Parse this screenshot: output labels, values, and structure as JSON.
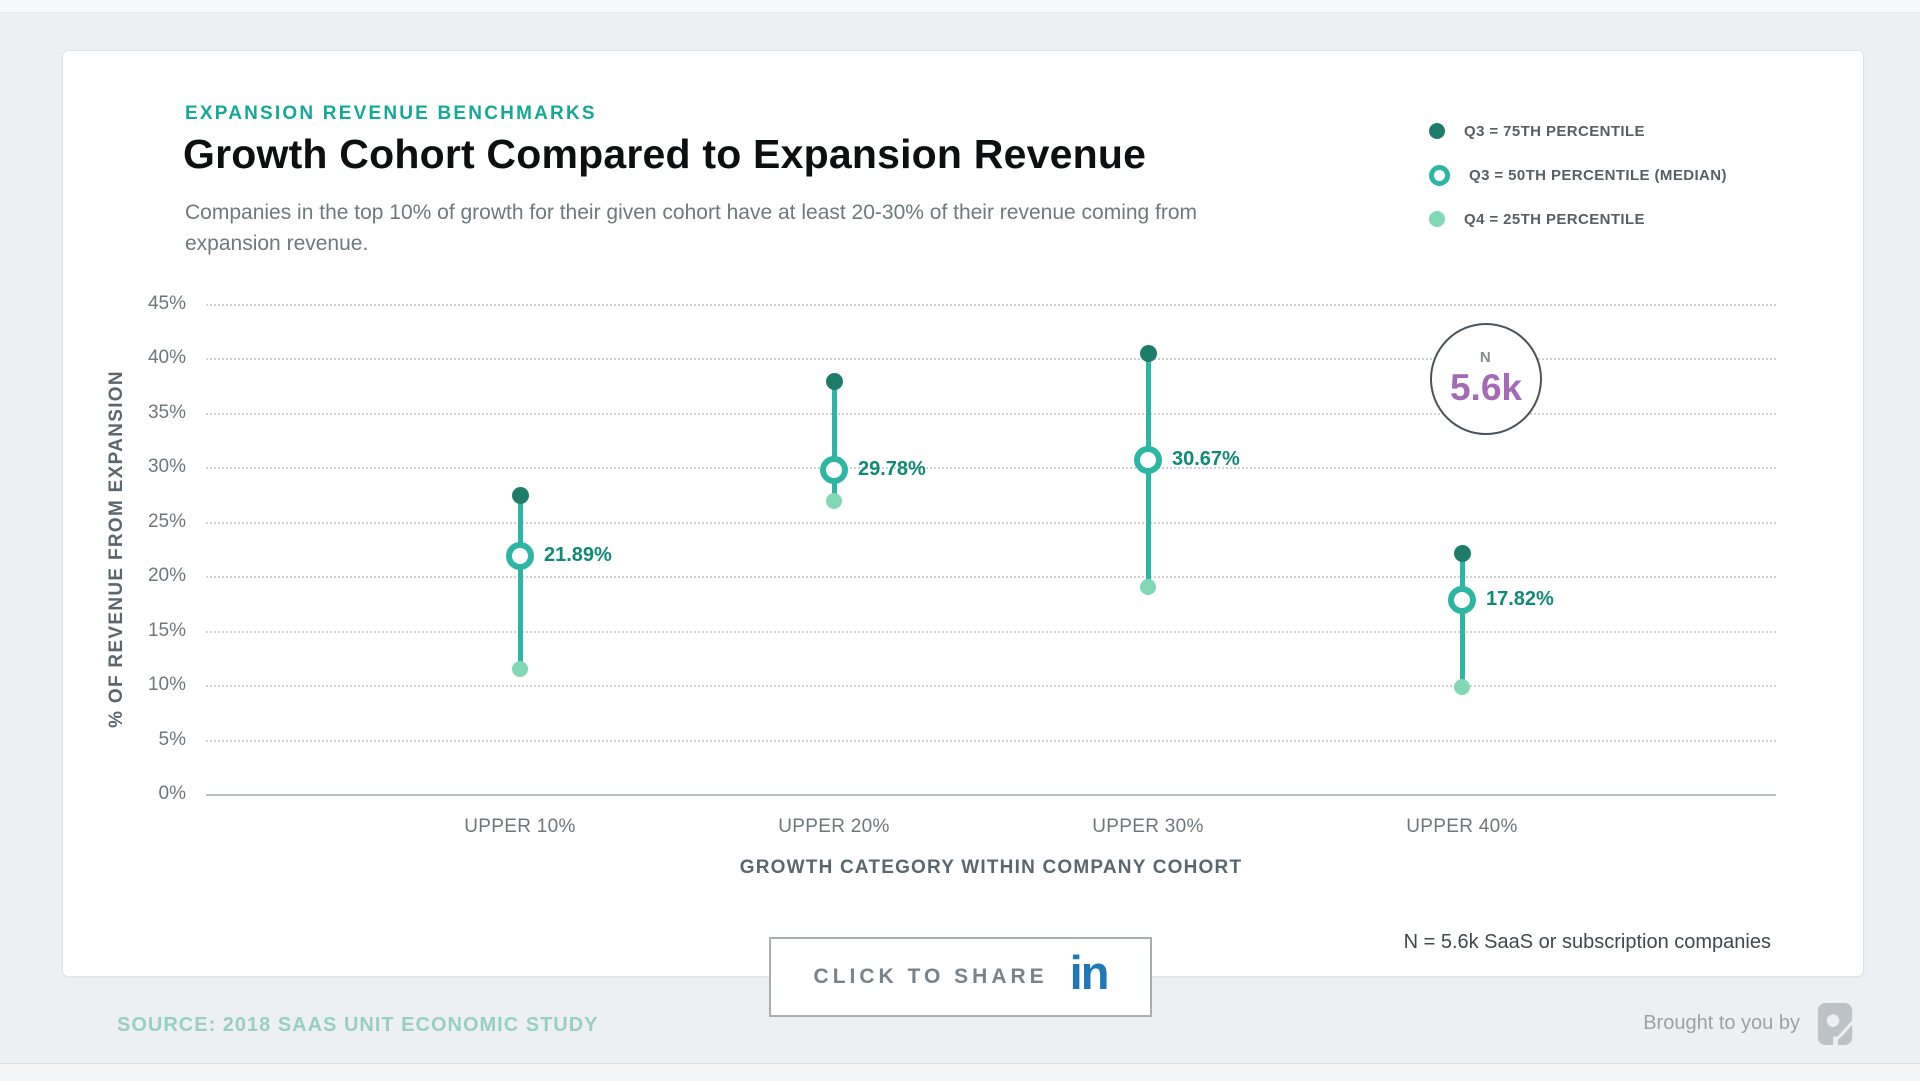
{
  "page": {
    "eyebrow": "EXPANSION REVENUE BENCHMARKS",
    "title": "Growth Cohort Compared to Expansion Revenue",
    "subtitle": "Companies in the top 10% of growth for their given cohort have at least 20-30% of their revenue coming from expansion revenue.",
    "sample_note": "N = 5.6k SaaS or subscription companies",
    "share_label": "CLICK TO SHARE",
    "linkedin_glyph": "in",
    "source": "SOURCE: 2018 SAAS UNIT ECONOMIC STUDY",
    "brought_by": "Brought to you by",
    "n_badge": {
      "label": "N",
      "value": "5.6k"
    }
  },
  "legend": [
    {
      "label": "Q3 = 75TH PERCENTILE",
      "marker": "filled-dark"
    },
    {
      "label": "Q3 = 50TH PERCENTILE (MEDIAN)",
      "marker": "ring"
    },
    {
      "label": "Q4 = 25TH PERCENTILE",
      "marker": "filled-light"
    }
  ],
  "colors": {
    "accent_teal": "#14a897",
    "q3_75th_dot": "#1e7d6a",
    "median_line_and_ring": "#2cb6a3",
    "q4_25th_dot": "#81d8b4",
    "median_label_text": "#0f8a77",
    "n_value_purple": "#a56ab7",
    "linkedin_blue": "#2077b5",
    "source_text": "#98cfc4",
    "background": "#edf0f2"
  },
  "chart_data": {
    "type": "scatter",
    "subtype": "lollipop-range dot plot",
    "title": "Growth Cohort Compared to Expansion Revenue",
    "categories": [
      "UPPER 10%",
      "UPPER 20%",
      "UPPER 30%",
      "UPPER 40%"
    ],
    "series": [
      {
        "name": "Q3 = 75TH PERCENTILE",
        "values": [
          27.4,
          37.9,
          40.5,
          22.1
        ]
      },
      {
        "name": "Q3 = 50TH PERCENTILE (MEDIAN)",
        "values": [
          21.89,
          29.78,
          30.67,
          17.82
        ]
      },
      {
        "name": "Q4 = 25TH PERCENTILE",
        "values": [
          11.5,
          26.9,
          19.0,
          9.8
        ]
      }
    ],
    "median_labels": [
      "21.89%",
      "29.78%",
      "30.67%",
      "17.82%"
    ],
    "xlabel": "GROWTH CATEGORY WITHIN COMPANY COHORT",
    "ylabel": "% OF REVENUE FROM EXPANSION",
    "ylim": [
      0,
      45
    ],
    "ytick_step": 5,
    "ytick_suffix": "%",
    "grid": "dotted horizontal gridlines, solid zero axis",
    "legend_position": "top-right",
    "annotation": {
      "label": "N",
      "value": "5.6k"
    }
  }
}
